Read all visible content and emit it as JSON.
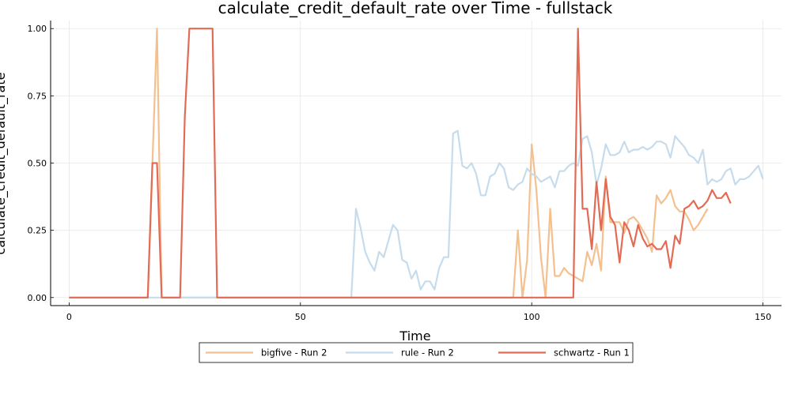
{
  "chart_data": {
    "type": "line",
    "title": "calculate_credit_default_rate over Time - fullstack",
    "xlabel": "Time",
    "ylabel": "calculate_credit_default_rate",
    "xlim": [
      -4,
      154
    ],
    "ylim": [
      -0.03,
      1.03
    ],
    "x_ticks": [
      0,
      50,
      100,
      150
    ],
    "y_ticks": [
      0.0,
      0.25,
      0.5,
      0.75,
      1.0
    ],
    "x_tick_labels": [
      "0",
      "50",
      "100",
      "150"
    ],
    "y_tick_labels": [
      "0.00",
      "0.25",
      "0.50",
      "0.75",
      "1.00"
    ],
    "grid": true,
    "legend_position": "bottom-center",
    "series": [
      {
        "name": "bigfive - Run 2",
        "color": "#f4c08f",
        "x": [
          0,
          17,
          18,
          19,
          20,
          96,
          97,
          98,
          99,
          100,
          101,
          102,
          103,
          104,
          105,
          106,
          107,
          108,
          109,
          110,
          111,
          112,
          113,
          114,
          115,
          116,
          117,
          118,
          119,
          120,
          121,
          122,
          123,
          124,
          125,
          126,
          127,
          128,
          129,
          130,
          131,
          132,
          133,
          134,
          135,
          136,
          137,
          138
        ],
        "y": [
          0,
          0,
          0.5,
          1.0,
          0,
          0,
          0.25,
          0,
          0.14,
          0.57,
          0.4,
          0.15,
          0,
          0.33,
          0.08,
          0.08,
          0.11,
          0.09,
          0.08,
          0.07,
          0.06,
          0.17,
          0.12,
          0.2,
          0.1,
          0.45,
          0.28,
          0.28,
          0.28,
          0.24,
          0.29,
          0.3,
          0.28,
          0.25,
          0.22,
          0.17,
          0.38,
          0.35,
          0.37,
          0.4,
          0.34,
          0.32,
          0.32,
          0.29,
          0.25,
          0.27,
          0.3,
          0.33
        ]
      },
      {
        "name": "rule - Run 2",
        "color": "#c6dcec",
        "x": [
          0,
          61,
          62,
          63,
          64,
          65,
          66,
          67,
          68,
          69,
          70,
          71,
          72,
          73,
          74,
          75,
          76,
          77,
          78,
          79,
          80,
          81,
          82,
          83,
          84,
          85,
          86,
          87,
          88,
          89,
          90,
          91,
          92,
          93,
          94,
          95,
          96,
          97,
          98,
          99,
          100,
          101,
          102,
          103,
          104,
          105,
          106,
          107,
          108,
          109,
          110,
          111,
          112,
          113,
          114,
          115,
          116,
          117,
          118,
          119,
          120,
          121,
          122,
          123,
          124,
          125,
          126,
          127,
          128,
          129,
          130,
          131,
          132,
          133,
          134,
          135,
          136,
          137,
          138,
          139,
          140,
          141,
          142,
          143,
          144,
          145,
          146,
          147,
          148,
          149,
          150
        ],
        "y": [
          0,
          0,
          0.33,
          0.26,
          0.17,
          0.13,
          0.1,
          0.17,
          0.15,
          0.21,
          0.27,
          0.25,
          0.14,
          0.13,
          0.07,
          0.1,
          0.03,
          0.06,
          0.06,
          0.03,
          0.11,
          0.15,
          0.15,
          0.61,
          0.62,
          0.49,
          0.48,
          0.5,
          0.46,
          0.38,
          0.38,
          0.45,
          0.46,
          0.5,
          0.48,
          0.41,
          0.4,
          0.42,
          0.43,
          0.48,
          0.46,
          0.45,
          0.43,
          0.44,
          0.45,
          0.41,
          0.47,
          0.47,
          0.49,
          0.5,
          0.49,
          0.59,
          0.6,
          0.54,
          0.42,
          0.48,
          0.57,
          0.53,
          0.53,
          0.54,
          0.58,
          0.54,
          0.55,
          0.55,
          0.56,
          0.55,
          0.56,
          0.58,
          0.58,
          0.57,
          0.52,
          0.6,
          0.58,
          0.56,
          0.53,
          0.52,
          0.5,
          0.55,
          0.42,
          0.44,
          0.43,
          0.44,
          0.47,
          0.48,
          0.42,
          0.44,
          0.44,
          0.45,
          0.47,
          0.49,
          0.44
        ]
      },
      {
        "name": "schwartz - Run 1",
        "color": "#e26b55",
        "x": [
          0,
          17,
          18,
          19,
          20,
          21,
          22,
          23,
          24,
          25,
          26,
          27,
          28,
          29,
          30,
          31,
          32,
          108,
          109,
          110,
          111,
          112,
          113,
          114,
          115,
          116,
          117,
          118,
          119,
          120,
          121,
          122,
          123,
          124,
          125,
          126,
          127,
          128,
          129,
          130,
          131,
          132,
          133,
          134,
          135,
          136,
          137,
          138,
          139,
          140,
          141,
          142,
          143
        ],
        "y": [
          0,
          0,
          0.5,
          0.5,
          0,
          0,
          0,
          0,
          0,
          0.67,
          1.0,
          1.0,
          1.0,
          1.0,
          1.0,
          1.0,
          0,
          0,
          0,
          1.0,
          0.33,
          0.33,
          0.18,
          0.43,
          0.25,
          0.44,
          0.3,
          0.27,
          0.13,
          0.28,
          0.25,
          0.19,
          0.27,
          0.22,
          0.19,
          0.2,
          0.18,
          0.18,
          0.21,
          0.11,
          0.23,
          0.2,
          0.33,
          0.34,
          0.36,
          0.33,
          0.34,
          0.36,
          0.4,
          0.37,
          0.37,
          0.39,
          0.35
        ]
      }
    ]
  }
}
